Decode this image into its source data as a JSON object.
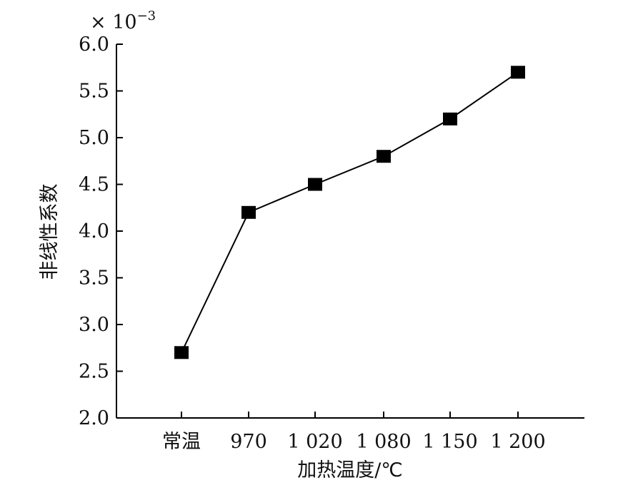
{
  "chart_data": {
    "type": "line",
    "title": "",
    "xlabel": "加热温度/℃",
    "ylabel": "非线性系数",
    "y_scale_label": "× 10",
    "y_scale_exponent": "−3",
    "categories": [
      "常温",
      "970",
      "1 020",
      "1 080",
      "1 150",
      "1 200"
    ],
    "series": [
      {
        "values": [
          2.7,
          4.2,
          4.5,
          4.8,
          5.2,
          5.7
        ]
      }
    ],
    "ylim": [
      2.0,
      6.0
    ],
    "yticks": [
      "2.0",
      "2.5",
      "3.0",
      "3.5",
      "4.0",
      "4.5",
      "5.0",
      "5.5",
      "6.0"
    ],
    "grid": false,
    "marker": "square",
    "colors": {
      "line": "#000000",
      "marker": "#000000",
      "axis": "#000000"
    }
  }
}
